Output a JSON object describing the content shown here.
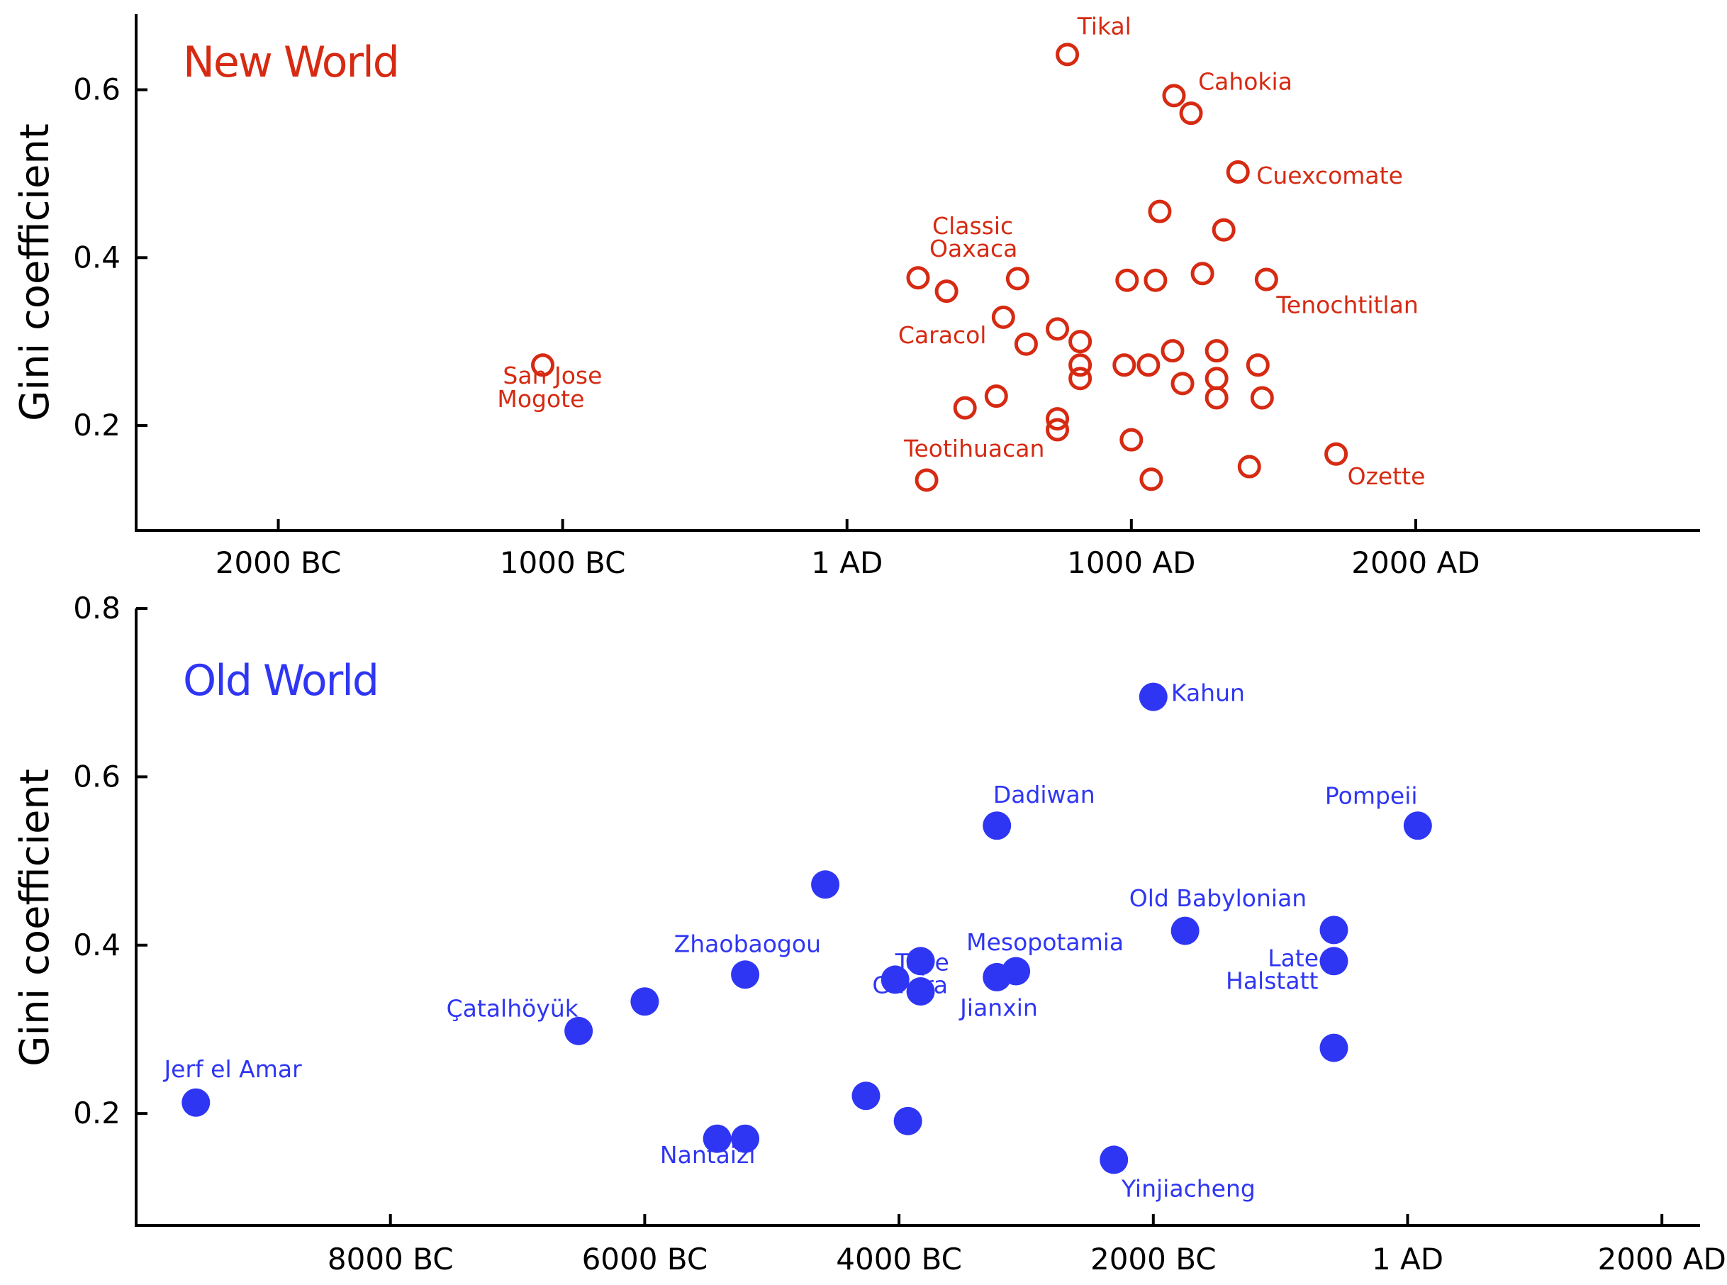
{
  "chart_data": [
    {
      "type": "scatter",
      "title": "New World",
      "ylabel": "Gini coefficient",
      "xlabel": "",
      "xlim": [
        -2500,
        3000
      ],
      "ylim": [
        0.075,
        0.69
      ],
      "y_ticks": [
        {
          "value": 0.2,
          "label": "0.2"
        },
        {
          "value": 0.4,
          "label": "0.4"
        },
        {
          "value": 0.6,
          "label": "0.6"
        }
      ],
      "x_ticks": [
        {
          "value": -2000,
          "label": "2000 BC"
        },
        {
          "value": -1000,
          "label": "1000 BC"
        },
        {
          "value": 0,
          "label": "1 AD"
        },
        {
          "value": 1000,
          "label": "1000 AD"
        },
        {
          "value": 2000,
          "label": "2000 AD"
        }
      ],
      "marker": "open-circle",
      "color": "#d62a12",
      "points": [
        {
          "x": 775,
          "y": 0.642
        },
        {
          "x": 1150,
          "y": 0.593
        },
        {
          "x": 1210,
          "y": 0.572
        },
        {
          "x": 1375,
          "y": 0.502
        },
        {
          "x": 1100,
          "y": 0.455
        },
        {
          "x": 1325,
          "y": 0.433
        },
        {
          "x": 250,
          "y": 0.376
        },
        {
          "x": 600,
          "y": 0.375
        },
        {
          "x": 985,
          "y": 0.373
        },
        {
          "x": 1085,
          "y": 0.373
        },
        {
          "x": 1250,
          "y": 0.381
        },
        {
          "x": 1475,
          "y": 0.374
        },
        {
          "x": 350,
          "y": 0.36
        },
        {
          "x": 550,
          "y": 0.329
        },
        {
          "x": 740,
          "y": 0.315
        },
        {
          "x": 820,
          "y": 0.3
        },
        {
          "x": 630,
          "y": 0.297
        },
        {
          "x": 1145,
          "y": 0.289
        },
        {
          "x": 1300,
          "y": 0.289
        },
        {
          "x": 820,
          "y": 0.272
        },
        {
          "x": 975,
          "y": 0.272
        },
        {
          "x": 1060,
          "y": 0.272
        },
        {
          "x": 1445,
          "y": 0.272
        },
        {
          "x": -1070,
          "y": 0.272
        },
        {
          "x": 820,
          "y": 0.256
        },
        {
          "x": 1300,
          "y": 0.256
        },
        {
          "x": 1180,
          "y": 0.25
        },
        {
          "x": 1300,
          "y": 0.233
        },
        {
          "x": 1460,
          "y": 0.233
        },
        {
          "x": 525,
          "y": 0.235
        },
        {
          "x": 415,
          "y": 0.221
        },
        {
          "x": 740,
          "y": 0.208
        },
        {
          "x": 740,
          "y": 0.195
        },
        {
          "x": 1000,
          "y": 0.183
        },
        {
          "x": 1720,
          "y": 0.166
        },
        {
          "x": 1415,
          "y": 0.151
        },
        {
          "x": 280,
          "y": 0.135
        },
        {
          "x": 1070,
          "y": 0.136
        }
      ],
      "annotations": [
        {
          "text": "Tikal",
          "x": 810,
          "y": 0.666
        },
        {
          "text": "Cahokia",
          "x": 1235,
          "y": 0.6
        },
        {
          "text": "Cuexcomate",
          "x": 1440,
          "y": 0.488
        },
        {
          "text": "Classic",
          "x": 300,
          "y": 0.428
        },
        {
          "text": "Oaxaca",
          "x": 290,
          "y": 0.401
        },
        {
          "text": "Tenochtitlan",
          "x": 1510,
          "y": 0.334
        },
        {
          "text": "Caracol",
          "x": 180,
          "y": 0.298
        },
        {
          "text": "San Jose",
          "x": -1210,
          "y": 0.25
        },
        {
          "text": "Mogote",
          "x": -1230,
          "y": 0.222
        },
        {
          "text": "Teotihuacan",
          "x": 200,
          "y": 0.163
        },
        {
          "text": "Ozette",
          "x": 1760,
          "y": 0.13
        }
      ]
    },
    {
      "type": "scatter",
      "title": "Old World",
      "ylabel": "Gini coefficient",
      "xlabel": "",
      "xlim": [
        -10000,
        2300
      ],
      "ylim": [
        0.067,
        0.8
      ],
      "y_ticks": [
        {
          "value": 0.2,
          "label": "0.2"
        },
        {
          "value": 0.4,
          "label": "0.4"
        },
        {
          "value": 0.6,
          "label": "0.6"
        },
        {
          "value": 0.8,
          "label": "0.8"
        }
      ],
      "x_ticks": [
        {
          "value": -8000,
          "label": "8000 BC"
        },
        {
          "value": -6000,
          "label": "6000 BC"
        },
        {
          "value": -4000,
          "label": "4000 BC"
        },
        {
          "value": -2000,
          "label": "2000 BC"
        },
        {
          "value": 0,
          "label": "1 AD"
        },
        {
          "value": 2000,
          "label": "2000 AD"
        }
      ],
      "marker": "filled-circle",
      "color": "#2f36f3",
      "points": [
        {
          "x": -2000,
          "y": 0.695
        },
        {
          "x": -3230,
          "y": 0.542
        },
        {
          "x": 80,
          "y": 0.542
        },
        {
          "x": -4580,
          "y": 0.472
        },
        {
          "x": -1750,
          "y": 0.417
        },
        {
          "x": -580,
          "y": 0.418
        },
        {
          "x": -580,
          "y": 0.381
        },
        {
          "x": -3830,
          "y": 0.381
        },
        {
          "x": -5210,
          "y": 0.365
        },
        {
          "x": -4030,
          "y": 0.359
        },
        {
          "x": -3230,
          "y": 0.362
        },
        {
          "x": -3080,
          "y": 0.369
        },
        {
          "x": -3830,
          "y": 0.345
        },
        {
          "x": -6000,
          "y": 0.333
        },
        {
          "x": -6520,
          "y": 0.298
        },
        {
          "x": -580,
          "y": 0.278
        },
        {
          "x": -9530,
          "y": 0.213
        },
        {
          "x": -4260,
          "y": 0.221
        },
        {
          "x": -3930,
          "y": 0.191
        },
        {
          "x": -5430,
          "y": 0.17
        },
        {
          "x": -5210,
          "y": 0.17
        },
        {
          "x": -2310,
          "y": 0.145
        }
      ],
      "annotations": [
        {
          "text": "Kahun",
          "x": -1860,
          "y": 0.69
        },
        {
          "text": "Dadiwan",
          "x": -3260,
          "y": 0.569
        },
        {
          "text": "Pompeii",
          "x": -650,
          "y": 0.568
        },
        {
          "text": "Old Babylonian",
          "x": -2190,
          "y": 0.446
        },
        {
          "text": "Mesopotamia",
          "x": -3470,
          "y": 0.394
        },
        {
          "text": "Zhaobaogou",
          "x": -5770,
          "y": 0.392
        },
        {
          "text": "Tepe",
          "x": -4030,
          "y": 0.37
        },
        {
          "text": "Late",
          "x": -1100,
          "y": 0.375
        },
        {
          "text": "Gawra",
          "x": -4210,
          "y": 0.343
        },
        {
          "text": "Halstatt",
          "x": -1430,
          "y": 0.348
        },
        {
          "text": "Jianxin",
          "x": -3520,
          "y": 0.316
        },
        {
          "text": "Çatalhöyük",
          "x": -7560,
          "y": 0.315
        },
        {
          "text": "Jerf el Amar",
          "x": -9780,
          "y": 0.243
        },
        {
          "text": "Nantaizi",
          "x": -5880,
          "y": 0.141
        },
        {
          "text": "Yinjiacheng",
          "x": -2250,
          "y": 0.101
        }
      ]
    }
  ]
}
